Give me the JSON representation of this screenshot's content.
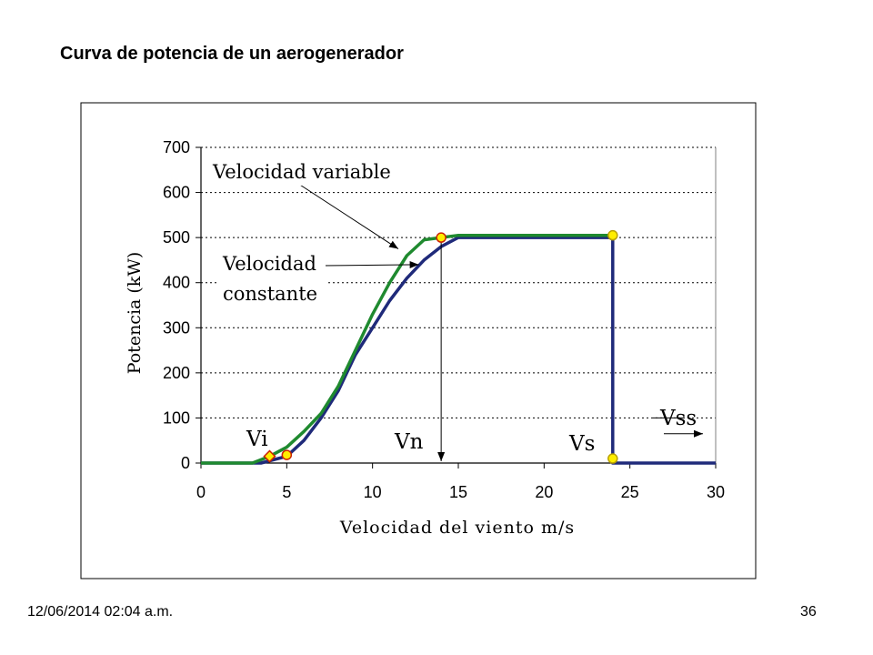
{
  "slide": {
    "title": "Curva de potencia de un aerogenerador",
    "date": "12/06/2014 02:04 a.m.",
    "page_number": "36"
  },
  "colors": {
    "constant_curve": "#1f2a7a",
    "variable_curve": "#1f8a2f",
    "marker_fill": "#ffee00",
    "marker_stroke": "#cc2200",
    "grid": "#000000"
  },
  "chart_data": {
    "type": "line",
    "title": "",
    "xlabel": "Velocidad del viento m/s",
    "ylabel": "Potencia (kW)",
    "xlim": [
      0,
      30
    ],
    "ylim": [
      0,
      700
    ],
    "x_ticks": [
      0,
      5,
      10,
      15,
      20,
      25,
      30
    ],
    "y_ticks": [
      0,
      100,
      200,
      300,
      400,
      500,
      600,
      700
    ],
    "grid": "horizontal dotted",
    "series": [
      {
        "key": "constant",
        "x": [
          0,
          3.5,
          4,
          5,
          6,
          7,
          8,
          9,
          10,
          11,
          12,
          13,
          14,
          15,
          20,
          24,
          24,
          30
        ],
        "y": [
          0,
          0,
          5,
          15,
          50,
          100,
          160,
          240,
          300,
          360,
          410,
          450,
          480,
          500,
          500,
          500,
          0,
          0
        ]
      },
      {
        "key": "variable",
        "x": [
          0,
          3,
          4,
          5,
          6,
          7,
          8,
          9,
          10,
          11,
          12,
          13,
          14,
          15,
          20,
          24
        ],
        "y": [
          0,
          0,
          15,
          35,
          70,
          110,
          170,
          250,
          330,
          400,
          460,
          495,
          500,
          505,
          505,
          505
        ]
      }
    ],
    "markers": [
      {
        "x": 4,
        "y": 15
      },
      {
        "x": 5,
        "y": 18
      },
      {
        "x": 14,
        "y": 500
      },
      {
        "x": 24,
        "y": 505
      },
      {
        "x": 24,
        "y": 10
      }
    ],
    "annotations": {
      "variable_label": "Velocidad variable",
      "constant_label_1": "Velocidad",
      "constant_label_2": "constante",
      "vi": "Vi",
      "vn": "Vn",
      "vs": "Vs",
      "vss": "Vss"
    }
  }
}
